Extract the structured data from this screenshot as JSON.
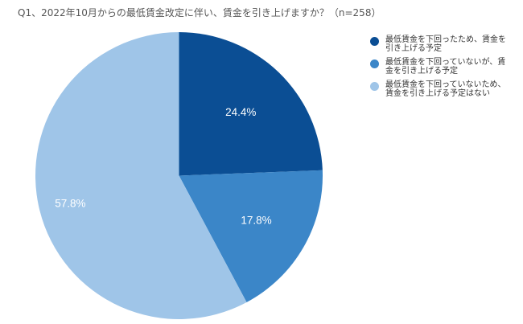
{
  "chart_data": {
    "type": "pie",
    "title": "Q1、2022年10月からの最低賃金改定に伴い、賃金を引き上げますか？（n=258）",
    "categories": [
      "最低賃金を下回ったため、賃金を引き上げる予定",
      "最低賃金を下回っていないが、賃金を引き上げる予定",
      "最低賃金を下回っていないため、賃金を引き上げる予定はない"
    ],
    "values": [
      24.4,
      17.8,
      57.8
    ],
    "labels": [
      "24.4%",
      "17.8%",
      "57.8%"
    ],
    "colors": [
      "#0b4e94",
      "#3b86c8",
      "#9fc5e8"
    ],
    "legend_position": "right",
    "n": 258
  },
  "title": "Q1、2022年10月からの最低賃金改定に伴い、賃金を引き上げますか？（n=258）",
  "legend": [
    {
      "label": "最低賃金を下回ったため、賃金を引き上げる予定",
      "color": "#0b4e94"
    },
    {
      "label": "最低賃金を下回っていないが、賃金を引き上げる予定",
      "color": "#3b86c8"
    },
    {
      "label": "最低賃金を下回っていないため、賃金を引き上げる予定はない",
      "color": "#9fc5e8"
    }
  ]
}
